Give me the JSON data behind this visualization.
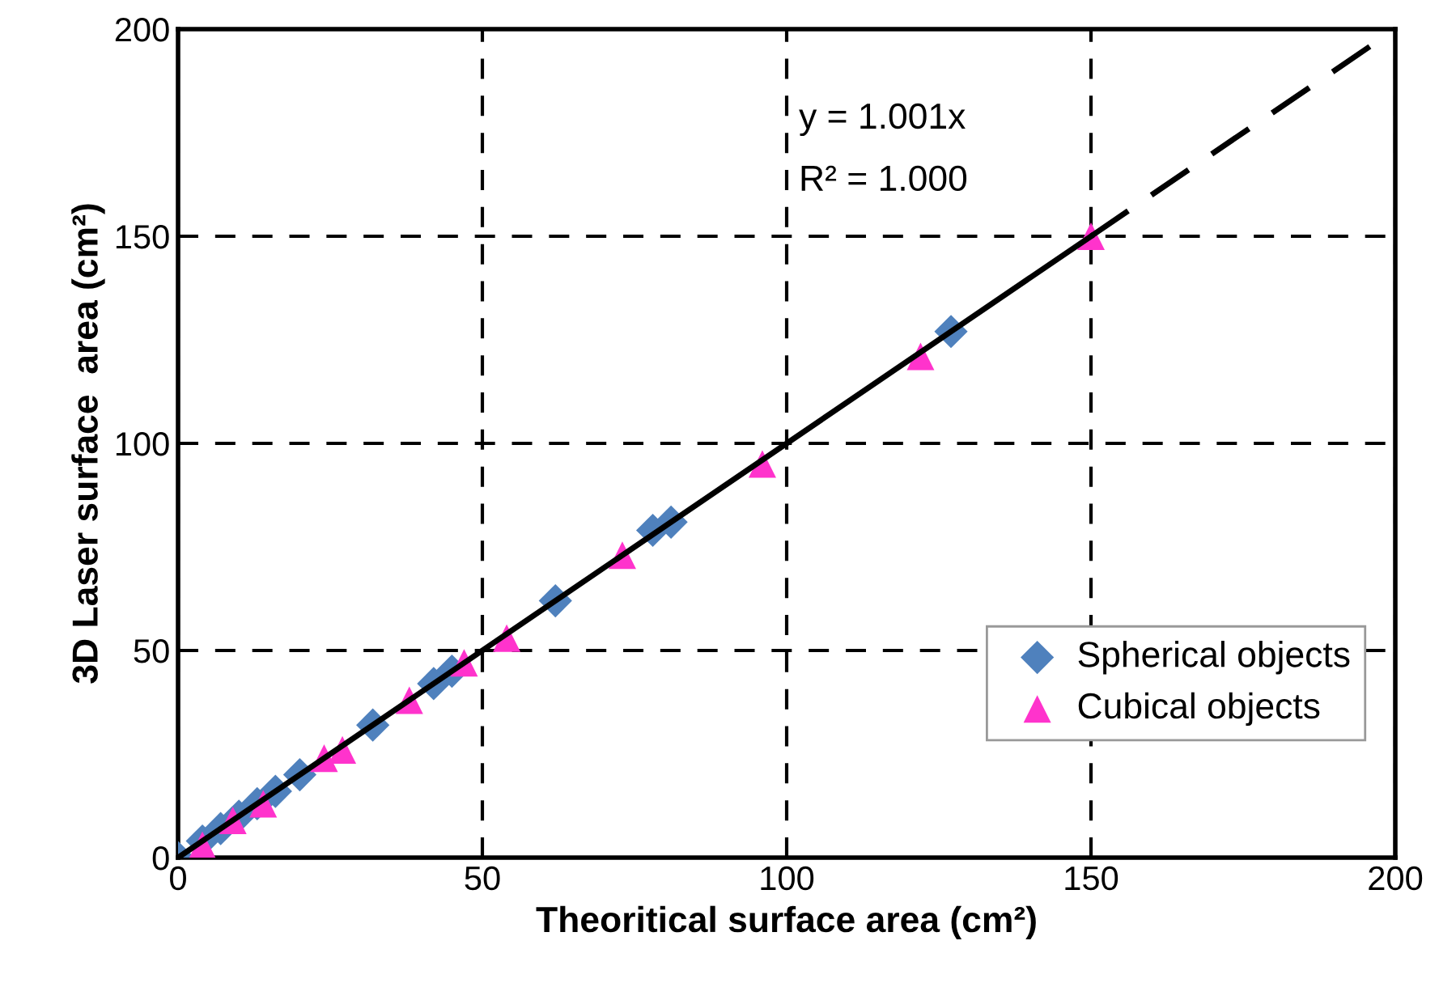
{
  "chart_data": {
    "type": "scatter",
    "xlabel": "Theoritical surface area (cm²)",
    "ylabel": "3D Laser surface  area (cm²)",
    "xlim": [
      0,
      200
    ],
    "ylim": [
      0,
      200
    ],
    "xticks": [
      0,
      50,
      100,
      150,
      200
    ],
    "yticks": [
      0,
      50,
      100,
      150,
      200
    ],
    "grid": true,
    "legend": "bottom right",
    "annotations": [
      "y = 1.001x",
      "R² = 1.000"
    ],
    "series": [
      {
        "name": "Spherical objects",
        "color": "#4f81bd",
        "marker": "diamond",
        "x": [
          0,
          4,
          7,
          10,
          13,
          16,
          20,
          32,
          42,
          45,
          62,
          78,
          81,
          127
        ],
        "values": [
          0,
          4,
          7,
          10,
          13,
          16,
          20,
          32,
          42,
          45,
          62,
          79,
          81,
          127
        ]
      },
      {
        "name": "Cubical objects",
        "color": "#ff33cc",
        "marker": "triangle",
        "x": [
          4,
          9,
          14,
          24,
          27,
          38,
          47,
          54,
          73,
          96,
          122,
          150
        ],
        "values": [
          3,
          9,
          13,
          24,
          26,
          38,
          47,
          53,
          73,
          95,
          121,
          150
        ]
      },
      {
        "type": "line",
        "color": "#000000",
        "line_style": "solid",
        "x": [
          0,
          150
        ],
        "values": [
          0,
          150
        ]
      },
      {
        "type": "line",
        "color": "#000000",
        "line_style": "dashed",
        "x": [
          150,
          200
        ],
        "values": [
          150,
          200
        ]
      }
    ]
  }
}
